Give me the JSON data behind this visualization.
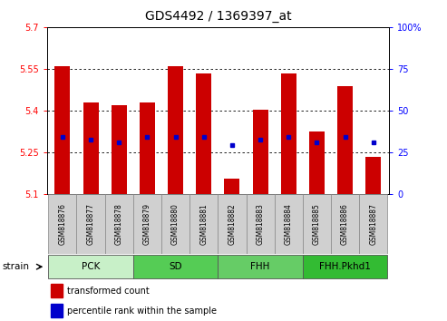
{
  "title": "GDS4492 / 1369397_at",
  "samples": [
    "GSM818876",
    "GSM818877",
    "GSM818878",
    "GSM818879",
    "GSM818880",
    "GSM818881",
    "GSM818882",
    "GSM818883",
    "GSM818884",
    "GSM818885",
    "GSM818886",
    "GSM818887"
  ],
  "red_values": [
    5.56,
    5.43,
    5.42,
    5.43,
    5.56,
    5.535,
    5.155,
    5.405,
    5.535,
    5.325,
    5.49,
    5.235
  ],
  "blue_values": [
    5.305,
    5.295,
    5.285,
    5.305,
    5.305,
    5.305,
    5.275,
    5.295,
    5.305,
    5.285,
    5.305,
    5.285
  ],
  "y_min": 5.1,
  "y_max": 5.7,
  "y_ticks_left": [
    5.1,
    5.25,
    5.4,
    5.55,
    5.7
  ],
  "y_ticks_right_labels": [
    "0",
    "25",
    "50",
    "75",
    "100%"
  ],
  "group_labels": [
    "PCK",
    "SD",
    "FHH",
    "FHH.Pkhd1"
  ],
  "group_starts": [
    0,
    3,
    6,
    9
  ],
  "group_ends": [
    3,
    6,
    9,
    12
  ],
  "group_colors": [
    "#b8f0b8",
    "#55cc55",
    "#55cc55",
    "#22bb22"
  ],
  "bar_color": "#cc0000",
  "dot_color": "#0000cc",
  "bar_width": 0.55,
  "legend_red": "transformed count",
  "legend_blue": "percentile rank within the sample"
}
